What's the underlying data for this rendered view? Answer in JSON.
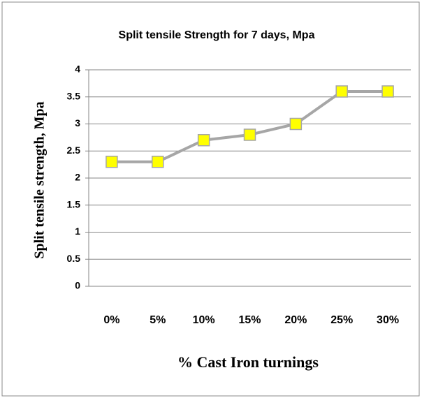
{
  "chart_data": {
    "type": "line",
    "title": "Split tensile Strength for 7 days, Mpa",
    "x_label": "% Cast Iron turnings",
    "y_label": "Split tensile strength, Mpa",
    "categories": [
      "0%",
      "5%",
      "10%",
      "15%",
      "20%",
      "25%",
      "30%"
    ],
    "series": [
      {
        "name": "Split tensile strength",
        "color": "#a6a6a6",
        "marker_color": "#ffff00",
        "values": [
          2.3,
          2.3,
          2.7,
          2.8,
          3,
          3.6,
          3.6
        ]
      }
    ],
    "ylim": [
      0,
      4
    ],
    "yticks": [
      0,
      0.5,
      1,
      1.5,
      2,
      2.5,
      3,
      3.5,
      4
    ],
    "grid": true
  }
}
